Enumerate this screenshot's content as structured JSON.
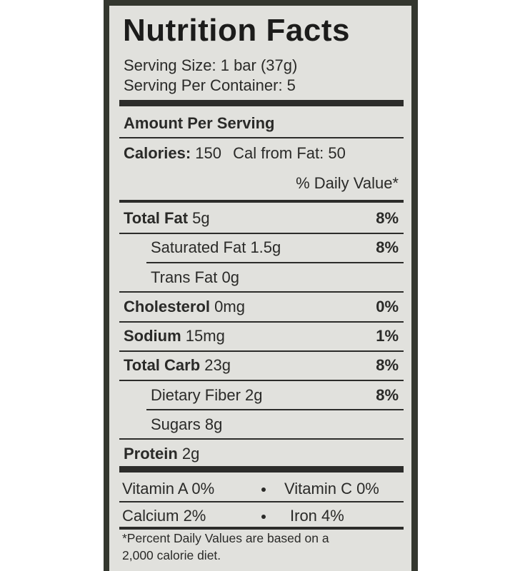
{
  "title": "Nutrition Facts",
  "serving_size": "Serving Size: 1 bar (37g)",
  "servings_per_container": "Serving Per Container: 5",
  "amount_header": "Amount Per Serving",
  "calories": {
    "label": "Calories:",
    "value": "150",
    "from_fat": "Cal from Fat: 50"
  },
  "dv_header": "% Daily Value*",
  "nutrients": [
    {
      "name": "Total Fat",
      "amount": "5g",
      "dv": "8%"
    },
    {
      "name": "Saturated Fat",
      "amount": "1.5g",
      "dv": "8%"
    },
    {
      "name": "Trans Fat",
      "amount": "0g",
      "dv": ""
    },
    {
      "name": "Cholesterol",
      "amount": "0mg",
      "dv": "0%"
    },
    {
      "name": "Sodium",
      "amount": "15mg",
      "dv": "1%"
    },
    {
      "name": "Total Carb",
      "amount": "23g",
      "dv": "8%"
    },
    {
      "name": "Dietary Fiber",
      "amount": "2g",
      "dv": "8%"
    },
    {
      "name": "Sugars",
      "amount": "8g",
      "dv": ""
    },
    {
      "name": "Protein",
      "amount": "2g",
      "dv": ""
    }
  ],
  "vitamins": {
    "vitamin_a": "Vitamin A 0%",
    "vitamin_c": "Vitamin C 0%",
    "calcium": "Calcium 2%",
    "iron": "Iron 4%"
  },
  "footnote": {
    "line1": "*Percent Daily Values are based on a",
    "line2": "2,000 calorie diet."
  }
}
